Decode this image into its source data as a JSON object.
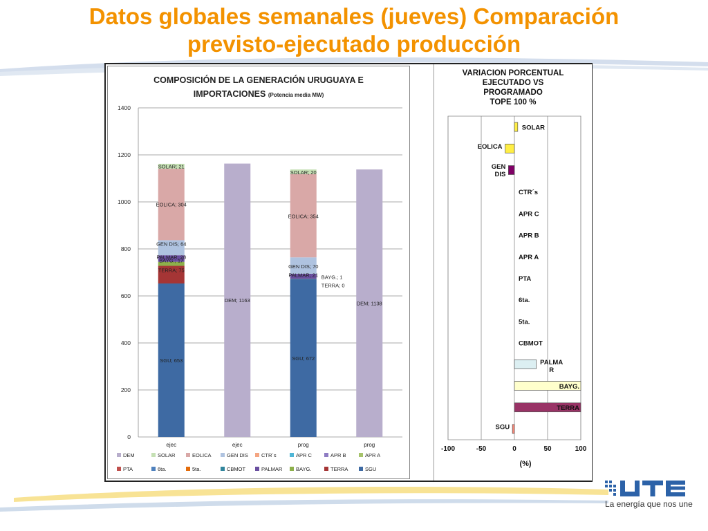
{
  "page": {
    "title_line1": "Datos globales semanales  (jueves) Comparación",
    "title_line2": "previsto-ejecutado producción"
  },
  "colors": {
    "title": "#f39200",
    "DEM": "#b8aecc",
    "SOLAR": "#c5e0b4",
    "EOLICA": "#d9a8a7",
    "GEN DIS": "#afc3e0",
    "PALMAR": "#6a4fa0",
    "BAYG.": "#8db04b",
    "TERRA": "#a53535",
    "SGU": "#3e6aa3",
    "right_SOLAR": "#ffee44",
    "right_EOLICA": "#ffee44",
    "right_GEN DIS": "#800066",
    "right_PALMAR": "#dceff2",
    "right_BAYG.": "#ffffcc",
    "right_TERRA": "#993366",
    "right_SGU": "#ff8877"
  },
  "chart_data": [
    {
      "type": "bar",
      "stacked": true,
      "title": "COMPOSICIÓN DE LA GENERACIÓN URUGUAYA E",
      "title_line2": "IMPORTACIONES",
      "title_suffix": "(Potencia media MW)",
      "categories": [
        "ejec",
        "ejec",
        "prog",
        "prog"
      ],
      "ylim": [
        0,
        1400
      ],
      "yticks": [
        0,
        200,
        400,
        600,
        800,
        1000,
        1200,
        1400
      ],
      "grid": true,
      "legend_position": "bottom",
      "legend": [
        "DEM",
        "SOLAR",
        "EOLICA",
        "GEN DIS",
        "CTR´s",
        "APR C",
        "APR B",
        "APR A",
        "PTA",
        "6ta.",
        "5ta.",
        "CBMOT",
        "PALMAR",
        "BAYG.",
        "TERRA",
        "SGU"
      ],
      "legend_colors": [
        "#b8aecc",
        "#c5e0b4",
        "#d9a8a7",
        "#afc3e0",
        "#f4a582",
        "#4fb6d6",
        "#8e7cc3",
        "#a6c36b",
        "#c0504d",
        "#4f81bd",
        "#e46c0a",
        "#31859c",
        "#6a4fa0",
        "#8db04b",
        "#a53535",
        "#3e6aa3"
      ],
      "series": [
        {
          "name": "SGU",
          "values": [
            653,
            0,
            672,
            0
          ]
        },
        {
          "name": "TERRA",
          "values": [
            75,
            0,
            0,
            0
          ]
        },
        {
          "name": "BAYG.",
          "values": [
            17,
            0,
            1,
            0
          ]
        },
        {
          "name": "PALMAR",
          "values": [
            28,
            0,
            21,
            0
          ]
        },
        {
          "name": "GEN DIS",
          "values": [
            64,
            0,
            70,
            0
          ]
        },
        {
          "name": "EOLICA",
          "values": [
            304,
            0,
            354,
            0
          ]
        },
        {
          "name": "SOLAR",
          "values": [
            21,
            0,
            20,
            0
          ]
        },
        {
          "name": "DEM",
          "values": [
            0,
            1163,
            0,
            1138
          ]
        }
      ],
      "data_labels": [
        "SOLAR; 21",
        "EOLICA; 304",
        "GEN DIS; 64",
        "PALMAR; 28",
        "BAYG.; 17",
        "TERRA; 75",
        "SGU; 653",
        "DEM; 1163",
        "SOLAR; 20",
        "EOLICA; 354",
        "GEN DIS; 70",
        "PALMAR; 21",
        "BAYG.; 1",
        "TERRA; 0",
        "SGU; 672",
        "DEM; 1138"
      ]
    },
    {
      "type": "bar",
      "orientation": "horizontal",
      "title": "VARIACION PORCENTUAL",
      "title_line2": "EJECUTADO VS",
      "title_line3": "PROGRAMADO",
      "title_line4": "TOPE 100 %",
      "xlabel": "(%)",
      "xlim": [
        -100,
        100
      ],
      "xticks": [
        -100,
        -50,
        0,
        50,
        100
      ],
      "grid": true,
      "categories": [
        "SOLAR",
        "EOLICA",
        "GEN DIS",
        "CTR´s",
        "APR C",
        "APR B",
        "APR A",
        "PTA",
        "6ta.",
        "5ta.",
        "CBMOT",
        "PALMAR",
        "BAYG.",
        "TERRA",
        "SGU"
      ],
      "category_labels": [
        "SOLAR",
        "EOLICA",
        "GEN\nDIS",
        "CTR´s",
        "APR C",
        "APR B",
        "APR A",
        "PTA",
        "6ta.",
        "5ta.",
        "CBMOT",
        "PALMA\nR",
        "BAYG.",
        "TERRA",
        "SGU"
      ],
      "values": [
        5,
        -14,
        -9,
        0,
        0,
        0,
        0,
        0,
        0,
        0,
        0,
        33,
        100,
        100,
        -3
      ]
    }
  ],
  "logo": {
    "text": "UTE",
    "slogan": "La energía que nos une"
  }
}
